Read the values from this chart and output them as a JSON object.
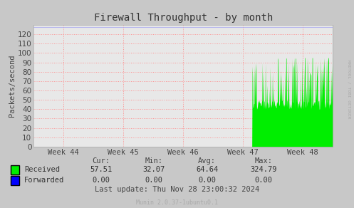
{
  "title": "Firewall Throughput - by month",
  "ylabel": "Packets/second",
  "background_color": "#c8c8c8",
  "plot_background": "#e8e8e8",
  "grid_color": "#ff8888",
  "weeks": [
    "Week 44",
    "Week 45",
    "Week 46",
    "Week 47",
    "Week 48"
  ],
  "week_x": [
    0.5,
    1.5,
    2.5,
    3.5,
    4.5
  ],
  "ylim": [
    0,
    130
  ],
  "yticks": [
    0,
    10,
    20,
    30,
    40,
    50,
    60,
    70,
    80,
    90,
    100,
    110,
    120
  ],
  "received_color": "#00ee00",
  "forwarded_color": "#0000ff",
  "legend_labels": [
    "Received",
    "Forwarded"
  ],
  "stats_headers": [
    "Cur:",
    "Min:",
    "Avg:",
    "Max:"
  ],
  "stats_received": [
    "57.51",
    "32.07",
    "64.64",
    "324.79"
  ],
  "stats_forwarded": [
    "0.00",
    "0.00",
    "0.00",
    "0.00"
  ],
  "last_update": "Last update: Thu Nov 28 23:00:32 2024",
  "footer": "Munin 2.0.37-1ubuntu0.1",
  "rrdtool_text": "RRDTOOL / TOBI OETIKER",
  "activity_start": 0.73,
  "n_points": 800,
  "xlim": [
    0,
    5
  ],
  "top_line_y": 128
}
